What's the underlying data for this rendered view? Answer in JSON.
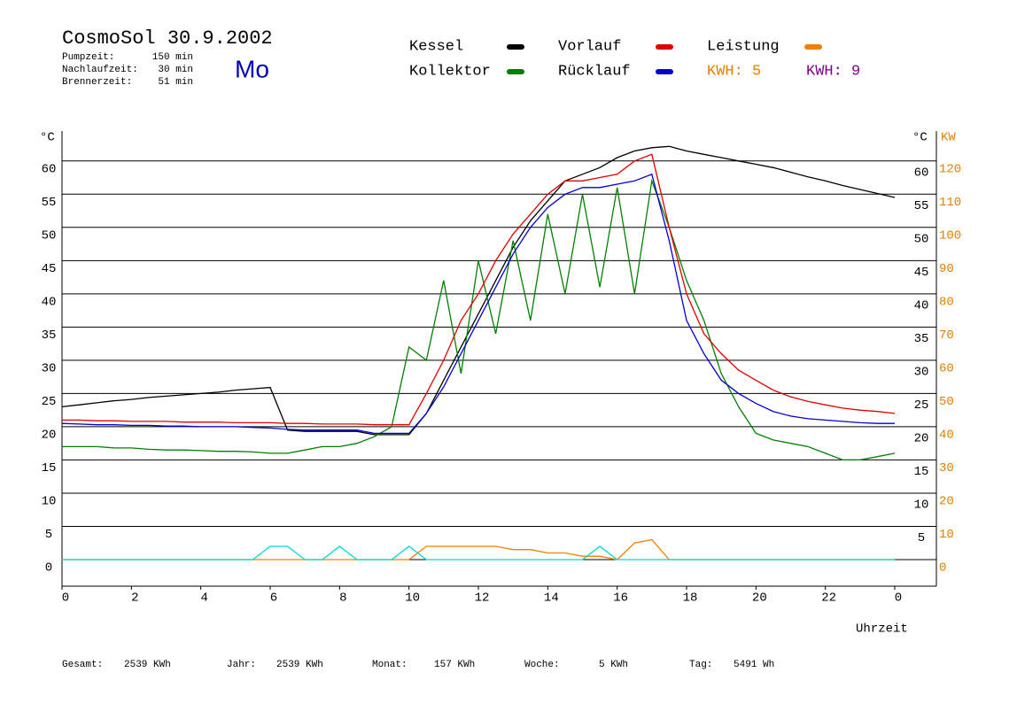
{
  "header": {
    "title": "CosmoSol 30.9.2002",
    "day": "Mo",
    "stats": [
      {
        "label": "Pumpzeit:",
        "value": "150 min"
      },
      {
        "label": "Nachlaufzeit:",
        "value": "30 min"
      },
      {
        "label": "Brennerzeit:",
        "value": "51 min"
      }
    ],
    "kwh": [
      {
        "text": "KWH: 5",
        "color": "#e08000"
      },
      {
        "text": "KWH: 9",
        "color": "#800080"
      }
    ]
  },
  "footer": [
    {
      "label": "Gesamt:",
      "value": "2539 KWh"
    },
    {
      "label": "Jahr:",
      "value": "2539 KWh"
    },
    {
      "label": "Monat:",
      "value": "157 KWh"
    },
    {
      "label": "Woche:",
      "value": "5 KWh"
    },
    {
      "label": "Tag:",
      "value": "5491 Wh"
    }
  ],
  "chart_data": {
    "type": "line",
    "x_label": "Uhrzeit",
    "y_label": "°C",
    "y_right_label": "°C",
    "y2_label": "KW",
    "x": [
      0,
      0.5,
      1,
      1.5,
      2,
      2.5,
      3,
      3.5,
      4,
      4.5,
      5,
      5.5,
      6,
      6.5,
      7,
      7.5,
      8,
      8.5,
      9,
      9.5,
      10,
      10.5,
      11,
      11.5,
      12,
      12.5,
      13,
      13.5,
      14,
      14.5,
      15,
      15.5,
      16,
      16.5,
      17,
      17.5,
      18,
      18.5,
      19,
      19.5,
      20,
      20.5,
      21,
      21.5,
      22,
      22.5,
      23,
      23.5,
      24
    ],
    "xlim": [
      0,
      24
    ],
    "xticks": [
      0,
      2,
      4,
      6,
      8,
      10,
      12,
      14,
      16,
      18,
      20,
      22,
      {
        "value": 24,
        "label": "0"
      }
    ],
    "ylim": [
      -4,
      64.5
    ],
    "yticks": [
      0,
      5,
      10,
      15,
      20,
      25,
      30,
      35,
      40,
      45,
      50,
      55,
      60
    ],
    "y2lim": [
      -8,
      129
    ],
    "y2ticks": [
      0,
      10,
      20,
      30,
      40,
      50,
      60,
      70,
      80,
      90,
      100,
      110,
      120
    ],
    "grid": true,
    "series": [
      {
        "name": "Kessel",
        "color": "#000000",
        "values": [
          23.0,
          23.3,
          23.6,
          23.9,
          24.1,
          24.4,
          24.6,
          24.8,
          25.0,
          25.2,
          25.5,
          25.7,
          25.9,
          19.5,
          19.3,
          19.3,
          19.3,
          19.3,
          18.8,
          18.8,
          18.8,
          22,
          27,
          32,
          37,
          42,
          47,
          51,
          54,
          57,
          58,
          59,
          60.5,
          61.5,
          62,
          62.2,
          61.5,
          61,
          60.5,
          60,
          59.5,
          59,
          58.3,
          57.6,
          57,
          56.3,
          55.7,
          55.1,
          54.5
        ]
      },
      {
        "name": "Kollektor",
        "color": "#008000",
        "values": [
          17,
          17,
          17,
          16.8,
          16.8,
          16.6,
          16.5,
          16.5,
          16.4,
          16.3,
          16.3,
          16.2,
          16,
          16,
          16.5,
          17,
          17,
          17.5,
          18.5,
          20,
          32,
          30,
          42,
          28,
          45,
          34,
          48,
          36,
          52,
          40,
          55,
          41,
          56,
          40,
          57,
          50,
          42,
          36,
          28,
          23,
          19,
          18,
          17.5,
          17,
          16,
          15,
          15,
          15.5,
          16
        ]
      },
      {
        "name": "Vorlauf",
        "color": "#e00000",
        "values": [
          21,
          21,
          20.9,
          20.9,
          20.8,
          20.8,
          20.8,
          20.7,
          20.7,
          20.7,
          20.6,
          20.6,
          20.6,
          20.5,
          20.5,
          20.4,
          20.4,
          20.4,
          20.3,
          20.3,
          20.3,
          25,
          30,
          36,
          40,
          45,
          49,
          52,
          55,
          57,
          57,
          57.5,
          58,
          60,
          61,
          50,
          40,
          34,
          31,
          28.5,
          27,
          25.5,
          24.5,
          23.8,
          23.3,
          22.8,
          22.5,
          22.3,
          22
        ]
      },
      {
        "name": "Rücklauf",
        "color": "#0000d0",
        "values": [
          20.5,
          20.4,
          20.3,
          20.3,
          20.2,
          20.2,
          20.1,
          20.1,
          20,
          20,
          20,
          19.9,
          19.8,
          19.6,
          19.5,
          19.5,
          19.5,
          19.5,
          19,
          19,
          19,
          22,
          26,
          31,
          36,
          41,
          46,
          50,
          53,
          55,
          56,
          56,
          56.5,
          57,
          58,
          48,
          36,
          31,
          27,
          25,
          23.5,
          22.3,
          21.6,
          21.2,
          21,
          20.8,
          20.6,
          20.5,
          20.5
        ]
      },
      {
        "name": "Leistung",
        "color": "#f08000",
        "axis": "y2",
        "values": [
          0,
          0,
          0,
          0,
          0,
          0,
          0,
          0,
          0,
          0,
          0,
          0,
          0,
          0,
          0,
          0,
          0,
          0,
          0,
          0,
          0,
          4,
          4,
          4,
          4,
          4,
          3,
          3,
          2,
          2,
          1,
          1,
          0,
          5,
          6,
          0,
          0,
          0,
          0,
          0,
          0,
          0,
          0,
          0,
          0,
          0,
          0,
          0,
          0
        ]
      },
      {
        "color": "#00d8d8",
        "values": [
          0,
          0,
          0,
          0,
          0,
          0,
          0,
          0,
          0,
          0,
          0,
          0,
          2,
          2,
          0,
          0,
          2,
          0,
          0,
          0,
          2,
          0,
          0,
          0,
          0,
          0,
          0,
          0,
          0,
          0,
          0,
          2,
          0,
          0,
          0,
          0,
          0,
          0,
          0,
          0,
          0,
          0,
          0,
          0,
          0,
          0,
          0,
          0,
          0
        ]
      }
    ]
  }
}
